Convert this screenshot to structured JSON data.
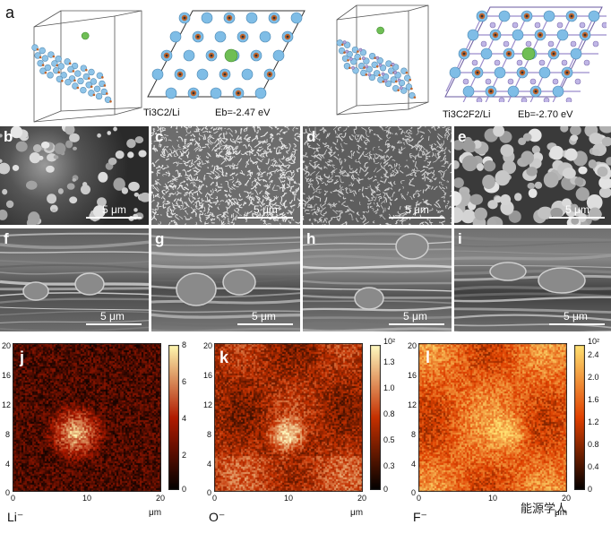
{
  "figure": {
    "panel_a": {
      "letter": "a",
      "left_caption": "Ti3C2/Li",
      "left_energy": "Eb=-2.47 eV",
      "right_caption": "Ti3C2F2/Li",
      "right_energy": "Eb=-2.70 eV"
    },
    "sem_top": [
      {
        "letter": "b",
        "scale": "5 μm"
      },
      {
        "letter": "c",
        "scale": "5 μm"
      },
      {
        "letter": "d",
        "scale": "5 μm"
      },
      {
        "letter": "e",
        "scale": "5 μm"
      }
    ],
    "sem_bottom": [
      {
        "letter": "f",
        "scale": "5 μm"
      },
      {
        "letter": "g",
        "scale": "5 μm"
      },
      {
        "letter": "h",
        "scale": "5 μm"
      },
      {
        "letter": "i",
        "scale": "5 μm"
      }
    ],
    "maps": [
      {
        "letter": "j",
        "ion": "Li⁻",
        "unit": "μm",
        "yticks": [
          "20",
          "16",
          "12",
          "8",
          "4",
          "0"
        ],
        "xticks": [
          "0",
          "10",
          "20"
        ],
        "cbar_ticks": [
          "8",
          "6",
          "4",
          "2",
          "0"
        ],
        "cbar_top": "8",
        "colors": {
          "low": "#000000",
          "mid": "#b01a00",
          "high": "#fff8b0"
        }
      },
      {
        "letter": "k",
        "ion": "O⁻",
        "unit": "μm",
        "yticks": [
          "20",
          "16",
          "12",
          "8",
          "4",
          "0"
        ],
        "xticks": [
          "0",
          "10",
          "20"
        ],
        "cbar_ticks": [
          "1.3",
          "1.0",
          "0.8",
          "0.5",
          "0.3",
          "0"
        ],
        "cbar_top": "10²",
        "colors": {
          "low": "#000000",
          "mid": "#c43000",
          "high": "#fffac0"
        }
      },
      {
        "letter": "l",
        "ion": "F⁻",
        "unit": "μm",
        "yticks": [
          "20",
          "16",
          "12",
          "8",
          "4",
          "0"
        ],
        "xticks": [
          "0",
          "10",
          "20"
        ],
        "cbar_ticks": [
          "2.4",
          "2.0",
          "1.6",
          "1.2",
          "0.8",
          "0.4",
          "0"
        ],
        "cbar_top": "10²",
        "colors": {
          "low": "#000000",
          "mid": "#e04000",
          "high": "#ffe070"
        }
      }
    ],
    "watermark": "能源学人"
  }
}
